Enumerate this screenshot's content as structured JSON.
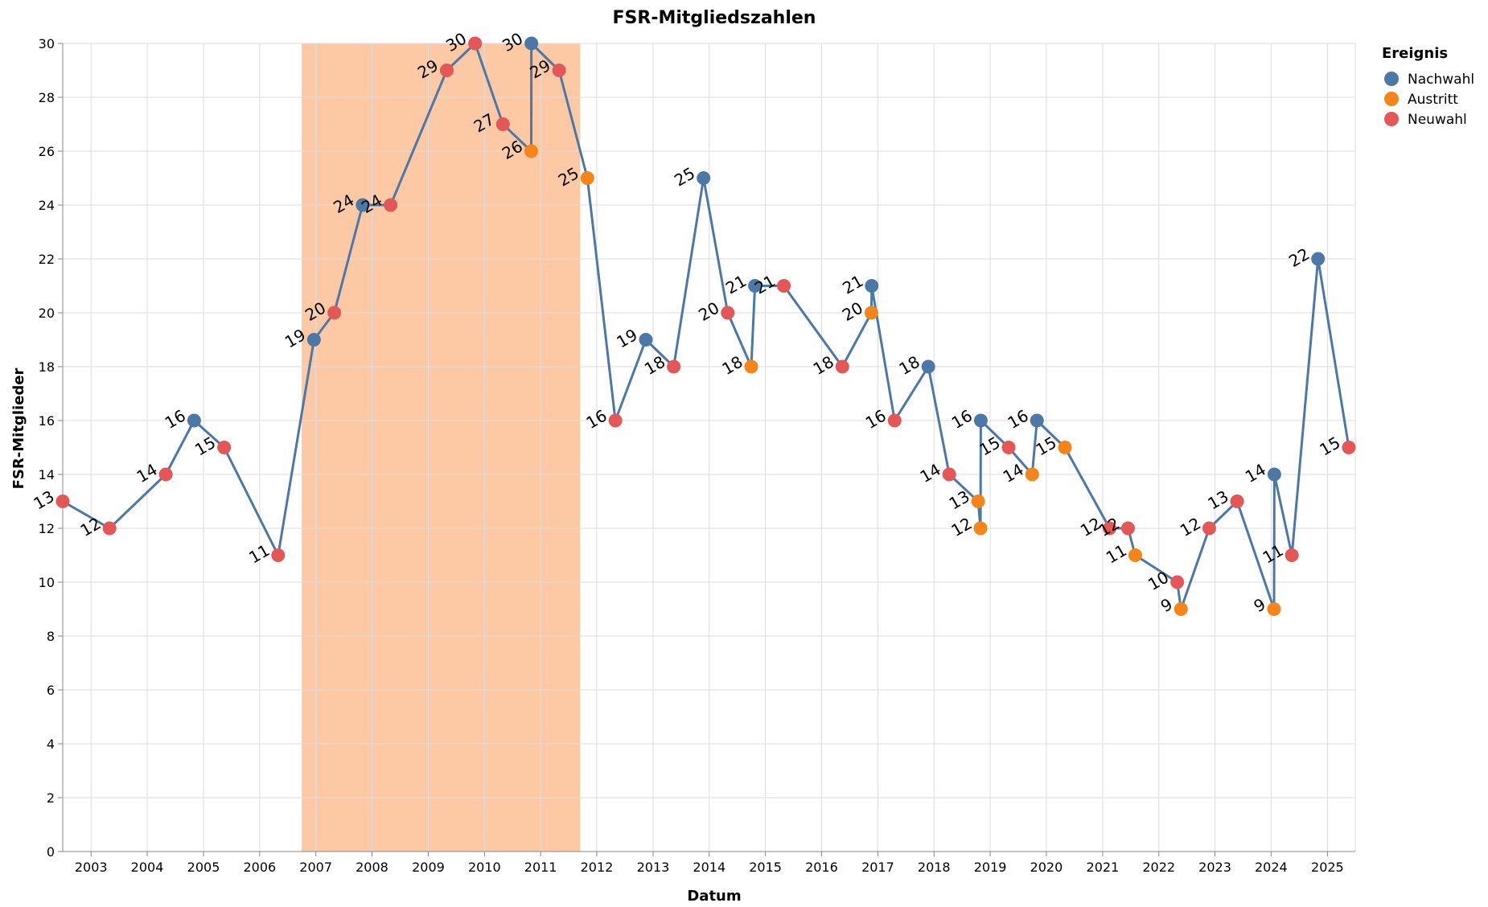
{
  "chart_data": {
    "type": "line",
    "title": "FSR-Mitgliedszahlen",
    "xlabel": "Datum",
    "ylabel": "FSR-Mitglieder",
    "ylim": [
      0,
      30
    ],
    "xlim": [
      "2002-07-01",
      "2025-07-01"
    ],
    "y_ticks": [
      "0",
      "2",
      "4",
      "6",
      "8",
      "10",
      "12",
      "14",
      "16",
      "18",
      "20",
      "22",
      "24",
      "26",
      "28",
      "30"
    ],
    "x_ticks": [
      "2003",
      "2004",
      "2005",
      "2006",
      "2007",
      "2008",
      "2009",
      "2010",
      "2011",
      "2012",
      "2013",
      "2014",
      "2015",
      "2016",
      "2017",
      "2018",
      "2019",
      "2020",
      "2021",
      "2022",
      "2023",
      "2024",
      "2025"
    ],
    "grid": true,
    "highlight_range": [
      "2006-10-01",
      "2011-09-15"
    ],
    "highlight_color": "#fdc9a4",
    "line_color": "#4c78a8",
    "legend": {
      "title": "Ereignis",
      "placement": "top-right",
      "entries": [
        {
          "label": "Nachwahl",
          "color": "#4c78a8"
        },
        {
          "label": "Austritt",
          "color": "#f58518"
        },
        {
          "label": "Neuwahl",
          "color": "#e45756"
        }
      ]
    },
    "points": [
      {
        "date": "2002-07-01",
        "value": 13,
        "event": "Neuwahl",
        "label": "13"
      },
      {
        "date": "2003-05-01",
        "value": 12,
        "event": "Neuwahl",
        "label": "12"
      },
      {
        "date": "2004-05-01",
        "value": 14,
        "event": "Neuwahl",
        "label": "14"
      },
      {
        "date": "2004-11-01",
        "value": 16,
        "event": "Nachwahl",
        "label": "16"
      },
      {
        "date": "2005-05-15",
        "value": 15,
        "event": "Neuwahl",
        "label": "15"
      },
      {
        "date": "2006-05-01",
        "value": 11,
        "event": "Neuwahl",
        "label": "11"
      },
      {
        "date": "2006-12-20",
        "value": 19,
        "event": "Nachwahl",
        "label": "19"
      },
      {
        "date": "2007-05-01",
        "value": 20,
        "event": "Neuwahl",
        "label": "20"
      },
      {
        "date": "2007-11-01",
        "value": 24,
        "event": "Nachwahl",
        "label": "24"
      },
      {
        "date": "2008-05-01",
        "value": 24,
        "event": "Neuwahl",
        "label": "24"
      },
      {
        "date": "2009-05-01",
        "value": 29,
        "event": "Neuwahl",
        "label": "29"
      },
      {
        "date": "2009-11-01",
        "value": 30,
        "event": "Neuwahl",
        "label": "30"
      },
      {
        "date": "2010-05-01",
        "value": 27,
        "event": "Neuwahl",
        "label": "27"
      },
      {
        "date": "2010-11-01",
        "value": 26,
        "event": "Austritt",
        "label": "26"
      },
      {
        "date": "2010-11-02",
        "value": 30,
        "event": "Nachwahl",
        "label": "30"
      },
      {
        "date": "2011-05-01",
        "value": 29,
        "event": "Neuwahl",
        "label": "29"
      },
      {
        "date": "2011-11-01",
        "value": 25,
        "event": "Austritt",
        "label": "25"
      },
      {
        "date": "2012-05-01",
        "value": 16,
        "event": "Neuwahl",
        "label": "16"
      },
      {
        "date": "2012-11-15",
        "value": 19,
        "event": "Nachwahl",
        "label": "19"
      },
      {
        "date": "2013-05-15",
        "value": 18,
        "event": "Neuwahl",
        "label": "18"
      },
      {
        "date": "2013-11-25",
        "value": 25,
        "event": "Nachwahl",
        "label": "25"
      },
      {
        "date": "2014-05-01",
        "value": 20,
        "event": "Neuwahl",
        "label": "20"
      },
      {
        "date": "2014-10-01",
        "value": 18,
        "event": "Austritt",
        "label": "18"
      },
      {
        "date": "2014-10-25",
        "value": 21,
        "event": "Nachwahl",
        "label": "21"
      },
      {
        "date": "2015-05-01",
        "value": 21,
        "event": "Neuwahl",
        "label": "21"
      },
      {
        "date": "2016-05-15",
        "value": 18,
        "event": "Neuwahl",
        "label": "18"
      },
      {
        "date": "2016-11-20",
        "value": 20,
        "event": "Austritt",
        "label": "20"
      },
      {
        "date": "2016-11-22",
        "value": 21,
        "event": "Nachwahl",
        "label": "21"
      },
      {
        "date": "2017-04-20",
        "value": 16,
        "event": "Neuwahl",
        "label": "16"
      },
      {
        "date": "2017-11-25",
        "value": 18,
        "event": "Nachwahl",
        "label": "18"
      },
      {
        "date": "2018-04-10",
        "value": 14,
        "event": "Neuwahl",
        "label": "14"
      },
      {
        "date": "2018-10-15",
        "value": 13,
        "event": "Austritt",
        "label": "13"
      },
      {
        "date": "2018-10-30",
        "value": 12,
        "event": "Austritt",
        "label": "12"
      },
      {
        "date": "2018-11-01",
        "value": 16,
        "event": "Nachwahl",
        "label": "16"
      },
      {
        "date": "2019-05-01",
        "value": 15,
        "event": "Neuwahl",
        "label": "15"
      },
      {
        "date": "2019-10-01",
        "value": 14,
        "event": "Austritt",
        "label": "14"
      },
      {
        "date": "2019-11-01",
        "value": 16,
        "event": "Nachwahl",
        "label": "16"
      },
      {
        "date": "2020-05-01",
        "value": 15,
        "event": "Austritt",
        "label": "15"
      },
      {
        "date": "2021-02-15",
        "value": 12,
        "event": "Neuwahl",
        "label": "12"
      },
      {
        "date": "2021-06-15",
        "value": 12,
        "event": "Neuwahl",
        "label": "12"
      },
      {
        "date": "2021-08-01",
        "value": 11,
        "event": "Austritt",
        "label": "11"
      },
      {
        "date": "2022-05-01",
        "value": 10,
        "event": "Neuwahl",
        "label": "10"
      },
      {
        "date": "2022-05-25",
        "value": 9,
        "event": "Austritt",
        "label": "9"
      },
      {
        "date": "2022-11-25",
        "value": 12,
        "event": "Neuwahl",
        "label": "12"
      },
      {
        "date": "2023-05-25",
        "value": 13,
        "event": "Neuwahl",
        "label": "13"
      },
      {
        "date": "2024-01-20",
        "value": 9,
        "event": "Austritt",
        "label": "9"
      },
      {
        "date": "2024-01-22",
        "value": 14,
        "event": "Nachwahl",
        "label": "14"
      },
      {
        "date": "2024-05-15",
        "value": 11,
        "event": "Neuwahl",
        "label": "11"
      },
      {
        "date": "2024-11-01",
        "value": 22,
        "event": "Nachwahl",
        "label": "22"
      },
      {
        "date": "2025-05-20",
        "value": 15,
        "event": "Neuwahl",
        "label": "15"
      }
    ]
  }
}
